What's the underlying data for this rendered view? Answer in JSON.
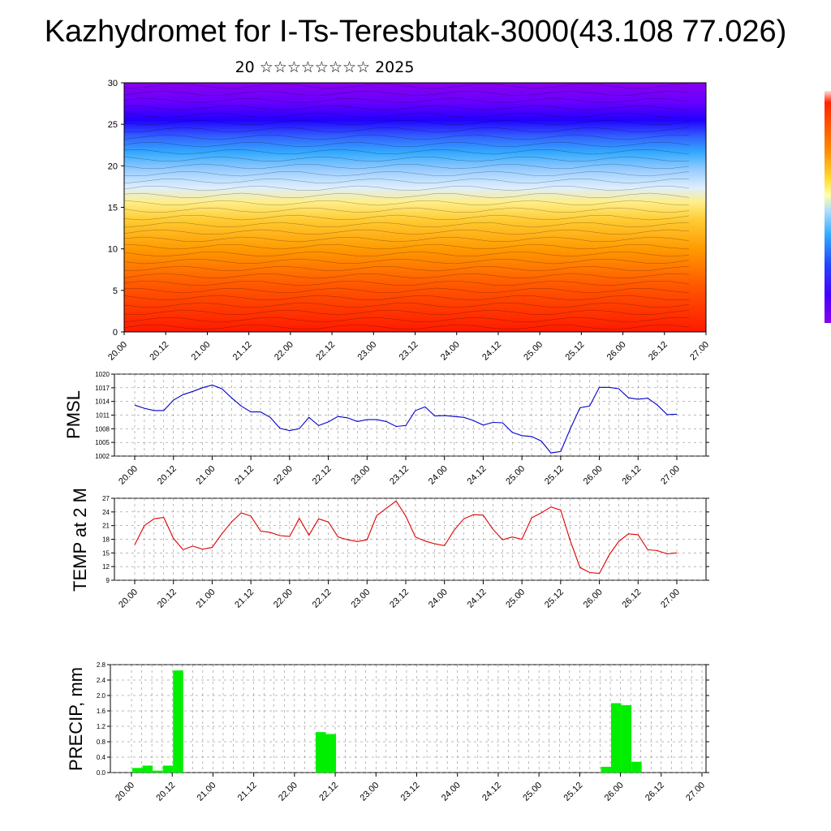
{
  "title": "Kazhydromet for I-Ts-Teresbutak-3000(43.108 77.026)",
  "subtitle": "20 ☆☆☆☆☆☆☆☆ 2025",
  "x_ticks": [
    "20.00",
    "20.12",
    "21.00",
    "21.12",
    "22.00",
    "22.12",
    "23.00",
    "23.12",
    "24.00",
    "24.12",
    "25.00",
    "25.12",
    "26.00",
    "26.12",
    "27.00"
  ],
  "colors": {
    "pmsl": "#0000cc",
    "temp": "#dd0000",
    "precip": "#00ee00"
  },
  "chart_data": [
    {
      "type": "heatmap",
      "title": "",
      "ylim": [
        0,
        30
      ],
      "y_ticks": [
        "0",
        "5",
        "10",
        "15",
        "20",
        "25",
        "30"
      ],
      "description_values": {
        "colorbar_from_top": [
          "#ffeeee",
          "#ff0000",
          "#ff6600",
          "#ffaa00",
          "#ffdd44",
          "#ffffaa",
          "#cceeff",
          "#66ccff",
          "#3399ff",
          "#3366ff",
          "#3300ff",
          "#6600ff",
          "#8800ff"
        ]
      }
    },
    {
      "type": "line",
      "ylabel": "PMSL",
      "ylim": [
        1002,
        1020
      ],
      "y_ticks": [
        "1002",
        "1005",
        "1008",
        "1011",
        "1014",
        "1017",
        "1020"
      ],
      "x": [
        0,
        1,
        2,
        3,
        4,
        5,
        6,
        7,
        8,
        9,
        10,
        11,
        12,
        13,
        14,
        15,
        16,
        17,
        18,
        19,
        20,
        21,
        22,
        23,
        24,
        25,
        26,
        27,
        28,
        29,
        30,
        31,
        32,
        33,
        34,
        35,
        36,
        37,
        38,
        39,
        40,
        41,
        42,
        43,
        44,
        45,
        46,
        47,
        48,
        49,
        50,
        51,
        52,
        53,
        54,
        55,
        56
      ],
      "values": [
        1013.2,
        1012.5,
        1012.0,
        1012.0,
        1014.3,
        1015.5,
        1016.2,
        1017.0,
        1017.6,
        1016.8,
        1014.8,
        1013.0,
        1011.7,
        1011.7,
        1010.5,
        1008.1,
        1007.6,
        1008.0,
        1010.5,
        1008.7,
        1009.5,
        1010.7,
        1010.4,
        1009.6,
        1010.0,
        1010.0,
        1009.6,
        1008.5,
        1008.7,
        1012.0,
        1012.8,
        1010.8,
        1010.9,
        1010.7,
        1010.5,
        1009.8,
        1008.8,
        1009.4,
        1009.3,
        1007.2,
        1006.5,
        1006.3,
        1005.3,
        1002.7,
        1003.0,
        1008.0,
        1012.6,
        1013.0,
        1017.1,
        1017.1,
        1016.8,
        1014.8,
        1014.5,
        1014.7,
        1013.2,
        1011.1,
        1011.2
      ]
    },
    {
      "type": "line",
      "ylabel": "TEMP at 2 M",
      "ylim": [
        9,
        27
      ],
      "y_ticks": [
        "9",
        "12",
        "15",
        "18",
        "21",
        "24",
        "27"
      ],
      "x": [
        0,
        1,
        2,
        3,
        4,
        5,
        6,
        7,
        8,
        9,
        10,
        11,
        12,
        13,
        14,
        15,
        16,
        17,
        18,
        19,
        20,
        21,
        22,
        23,
        24,
        25,
        26,
        27,
        28,
        29,
        30,
        31,
        32,
        33,
        34,
        35,
        36,
        37,
        38,
        39,
        40,
        41,
        42,
        43,
        44,
        45,
        46,
        47,
        48,
        49,
        50,
        51,
        52,
        53,
        54,
        55,
        56
      ],
      "values": [
        16.8,
        21.0,
        22.5,
        22.8,
        18.2,
        15.7,
        16.5,
        15.8,
        16.2,
        19.2,
        21.8,
        23.8,
        23.1,
        19.8,
        19.5,
        18.8,
        18.6,
        22.6,
        18.9,
        22.5,
        21.8,
        18.5,
        17.9,
        17.5,
        17.9,
        23.2,
        24.8,
        26.4,
        23.1,
        18.5,
        17.6,
        17.0,
        16.6,
        20.0,
        22.5,
        23.4,
        23.3,
        20.2,
        17.9,
        18.5,
        18.0,
        22.7,
        23.8,
        25.1,
        24.4,
        17.6,
        11.8,
        10.7,
        10.5,
        14.5,
        17.5,
        19.2,
        19.0,
        15.7,
        15.5,
        14.8,
        15.0
      ]
    },
    {
      "type": "bar",
      "ylabel": "PRECIP, mm",
      "ylim": [
        0,
        2.8
      ],
      "y_ticks": [
        "0.0",
        "0.4",
        "0.8",
        "1.2",
        "1.6",
        "2.0",
        "2.4",
        "2.8"
      ],
      "x": [
        0,
        1,
        2,
        3,
        4,
        5,
        6,
        7,
        8,
        9,
        10,
        11,
        12,
        13,
        14,
        15,
        16,
        17,
        18,
        19,
        20,
        21,
        22,
        23,
        24,
        25,
        26,
        27,
        28,
        29,
        30,
        31,
        32,
        33,
        34,
        35,
        36,
        37,
        38,
        39,
        40,
        41,
        42,
        43,
        44,
        45,
        46,
        47,
        48,
        49,
        50,
        51,
        52,
        53,
        54,
        55,
        56
      ],
      "values": [
        0.12,
        0.18,
        0.05,
        0.18,
        2.65,
        0,
        0,
        0,
        0,
        0,
        0,
        0,
        0,
        0,
        0,
        0,
        0,
        0,
        1.05,
        1.0,
        0,
        0,
        0,
        0,
        0,
        0,
        0,
        0,
        0,
        0,
        0,
        0,
        0,
        0,
        0,
        0,
        0,
        0,
        0,
        0,
        0,
        0,
        0,
        0,
        0,
        0,
        0.15,
        1.8,
        1.75,
        0.28,
        0,
        0,
        0,
        0,
        0,
        0,
        0
      ]
    }
  ]
}
